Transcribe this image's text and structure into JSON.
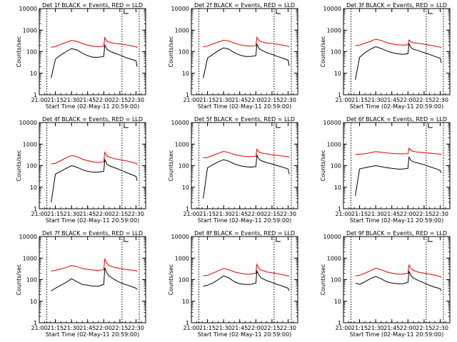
{
  "xtick_labels": [
    "21:00",
    "21:15",
    "21:30",
    "21:45",
    "22:00",
    "22:15",
    "22:30"
  ],
  "ytick_labels": [
    "1",
    "10",
    "100",
    "1000",
    "10000"
  ],
  "ylabel": "Counts/sec",
  "xlabel": "Start Time (02-May-11 20:59:00)",
  "colors": {
    "events": "#000000",
    "lld": "#e00000"
  },
  "chart_data": [
    {
      "type": "line",
      "title": "Det 1f BLACK = Events, RED = LLD",
      "xlabel": "Start Time (02-May-11 20:59:00)",
      "ylabel": "Counts/sec",
      "xlim": [
        "21:00",
        "22:39"
      ],
      "ylim": [
        1,
        10000
      ],
      "yscale": "log",
      "vlines": [
        "21:07",
        "22:17",
        "22:33"
      ],
      "x": [
        "21:11",
        "21:15",
        "21:20",
        "21:25",
        "21:30",
        "21:35",
        "21:40",
        "21:45",
        "21:50",
        "21:55",
        "22:00",
        "22:01",
        "22:03",
        "22:05",
        "22:10",
        "22:15",
        "22:20",
        "22:25",
        "22:30",
        "22:31"
      ],
      "series": [
        {
          "name": "BLACK = Events",
          "values": [
            6,
            45,
            70,
            100,
            140,
            120,
            85,
            65,
            55,
            55,
            60,
            200,
            130,
            110,
            85,
            70,
            55,
            45,
            38,
            20
          ]
        },
        {
          "name": "RED = LLD",
          "values": [
            160,
            170,
            220,
            270,
            330,
            300,
            240,
            200,
            180,
            170,
            180,
            450,
            300,
            280,
            240,
            230,
            210,
            190,
            170,
            150
          ]
        }
      ]
    },
    {
      "type": "line",
      "title": "Det 2f BLACK = Events, RED = LLD",
      "xlabel": "Start Time (02-May-11 20:59:00)",
      "ylabel": "Counts/sec",
      "xlim": [
        "21:00",
        "22:39"
      ],
      "ylim": [
        1,
        10000
      ],
      "yscale": "log",
      "vlines": [
        "21:07",
        "22:17",
        "22:33"
      ],
      "x": [
        "21:11",
        "21:15",
        "21:20",
        "21:25",
        "21:30",
        "21:35",
        "21:40",
        "21:45",
        "21:50",
        "21:55",
        "22:00",
        "22:01",
        "22:03",
        "22:05",
        "22:10",
        "22:15",
        "22:20",
        "22:25",
        "22:30",
        "22:31"
      ],
      "series": [
        {
          "name": "BLACK = Events",
          "values": [
            6,
            50,
            75,
            110,
            150,
            130,
            90,
            70,
            60,
            60,
            65,
            220,
            140,
            120,
            90,
            75,
            60,
            50,
            40,
            22
          ]
        },
        {
          "name": "RED = LLD",
          "values": [
            170,
            180,
            230,
            280,
            340,
            310,
            250,
            210,
            190,
            180,
            190,
            470,
            320,
            290,
            250,
            240,
            220,
            200,
            180,
            160
          ]
        }
      ]
    },
    {
      "type": "line",
      "title": "Det 3f BLACK = Events, RED = LLD",
      "xlabel": "Start Time (02-May-11 20:59:00)",
      "ylabel": "Counts/sec",
      "xlim": [
        "21:00",
        "22:39"
      ],
      "ylim": [
        1,
        10000
      ],
      "yscale": "log",
      "vlines": [
        "21:07",
        "22:17",
        "22:33"
      ],
      "x": [
        "21:11",
        "21:15",
        "21:20",
        "21:25",
        "21:30",
        "21:35",
        "21:40",
        "21:45",
        "21:50",
        "21:55",
        "22:00",
        "22:01",
        "22:03",
        "22:05",
        "22:10",
        "22:15",
        "22:20",
        "22:25",
        "22:30",
        "22:31"
      ],
      "series": [
        {
          "name": "BLACK = Events",
          "values": [
            5,
            55,
            90,
            130,
            170,
            140,
            110,
            90,
            80,
            75,
            80,
            230,
            150,
            130,
            110,
            90,
            75,
            60,
            50,
            30
          ]
        },
        {
          "name": "RED = LLD",
          "values": [
            190,
            200,
            250,
            300,
            380,
            330,
            270,
            230,
            210,
            200,
            210,
            350,
            280,
            260,
            240,
            220,
            200,
            180,
            160,
            150
          ]
        }
      ]
    },
    {
      "type": "line",
      "title": "Det 4f BLACK = Events, RED = LLD",
      "xlabel": "Start Time (02-May-11 20:59:00)",
      "ylabel": "Counts/sec",
      "xlim": [
        "21:00",
        "22:39"
      ],
      "ylim": [
        1,
        10000
      ],
      "yscale": "log",
      "vlines": [
        "21:07",
        "22:17",
        "22:33"
      ],
      "x": [
        "21:11",
        "21:15",
        "21:20",
        "21:25",
        "21:30",
        "21:35",
        "21:40",
        "21:45",
        "21:50",
        "21:55",
        "22:00",
        "22:01",
        "22:03",
        "22:05",
        "22:10",
        "22:15",
        "22:20",
        "22:25",
        "22:30",
        "22:31"
      ],
      "series": [
        {
          "name": "BLACK = Events",
          "values": [
            2,
            40,
            55,
            75,
            100,
            85,
            65,
            55,
            50,
            50,
            55,
            190,
            120,
            100,
            80,
            65,
            50,
            40,
            32,
            20
          ]
        },
        {
          "name": "RED = LLD",
          "values": [
            120,
            130,
            170,
            230,
            300,
            260,
            200,
            170,
            150,
            140,
            150,
            420,
            280,
            250,
            210,
            190,
            170,
            150,
            130,
            110
          ]
        }
      ]
    },
    {
      "type": "line",
      "title": "Det 5f BLACK = Events, RED = LLD",
      "xlabel": "Start Time (02-May-11 20:59:00)",
      "ylabel": "Counts/sec",
      "xlim": [
        "21:00",
        "22:39"
      ],
      "ylim": [
        1,
        10000
      ],
      "yscale": "log",
      "vlines": [
        "21:07",
        "22:17",
        "22:33"
      ],
      "x": [
        "21:11",
        "21:15",
        "21:20",
        "21:25",
        "21:30",
        "21:35",
        "21:40",
        "21:45",
        "21:50",
        "21:55",
        "22:00",
        "22:01",
        "22:03",
        "22:05",
        "22:10",
        "22:15",
        "22:20",
        "22:25",
        "22:30",
        "22:31"
      ],
      "series": [
        {
          "name": "BLACK = Events",
          "values": [
            3,
            80,
            110,
            150,
            190,
            160,
            120,
            100,
            90,
            85,
            90,
            300,
            200,
            170,
            140,
            120,
            100,
            85,
            70,
            40
          ]
        },
        {
          "name": "RED = LLD",
          "values": [
            230,
            240,
            300,
            370,
            460,
            400,
            330,
            290,
            270,
            260,
            270,
            580,
            420,
            390,
            350,
            320,
            300,
            280,
            260,
            240
          ]
        }
      ]
    },
    {
      "type": "line",
      "title": "Det 6f BLACK = Events, RED = LLD",
      "xlabel": "Start Time (02-May-11 20:59:00)",
      "ylabel": "Counts/sec",
      "xlim": [
        "21:00",
        "22:39"
      ],
      "ylim": [
        1,
        10000
      ],
      "yscale": "log",
      "vlines": [
        "21:07",
        "22:17",
        "22:33"
      ],
      "x": [
        "21:11",
        "21:15",
        "21:20",
        "21:25",
        "21:30",
        "21:35",
        "21:40",
        "21:45",
        "21:50",
        "21:55",
        "22:00",
        "22:01",
        "22:03",
        "22:05",
        "22:10",
        "22:15",
        "22:20",
        "22:25",
        "22:30",
        "22:31"
      ],
      "series": [
        {
          "name": "BLACK = Events",
          "values": [
            4,
            70,
            80,
            90,
            100,
            90,
            80,
            75,
            70,
            70,
            75,
            250,
            170,
            150,
            130,
            110,
            90,
            75,
            60,
            45
          ]
        },
        {
          "name": "RED = LLD",
          "values": [
            330,
            340,
            360,
            400,
            450,
            420,
            390,
            370,
            360,
            350,
            360,
            650,
            500,
            460,
            420,
            400,
            380,
            360,
            340,
            320
          ]
        }
      ]
    },
    {
      "type": "line",
      "title": "Det 7f BLACK = Events, RED = LLD",
      "xlabel": "Start Time (02-May-11 20:59:00)",
      "ylabel": "Counts/sec",
      "xlim": [
        "21:00",
        "22:39"
      ],
      "ylim": [
        1,
        10000
      ],
      "yscale": "log",
      "vlines": [
        "21:07",
        "22:17",
        "22:33"
      ],
      "x": [
        "21:11",
        "21:15",
        "21:20",
        "21:25",
        "21:30",
        "21:35",
        "21:40",
        "21:45",
        "21:50",
        "21:55",
        "22:00",
        "22:01",
        "22:03",
        "22:05",
        "22:10",
        "22:15",
        "22:20",
        "22:25",
        "22:30",
        "22:31"
      ],
      "series": [
        {
          "name": "BLACK = Events",
          "values": [
            30,
            40,
            55,
            75,
            110,
            80,
            60,
            55,
            50,
            50,
            60,
            350,
            200,
            150,
            100,
            75,
            60,
            50,
            40,
            35
          ]
        },
        {
          "name": "RED = LLD",
          "values": [
            250,
            270,
            310,
            370,
            450,
            400,
            330,
            300,
            280,
            270,
            290,
            900,
            550,
            450,
            370,
            330,
            300,
            280,
            260,
            240
          ]
        }
      ]
    },
    {
      "type": "line",
      "title": "Det 8f BLACK = Events, RED = LLD",
      "xlabel": "Start Time (02-May-11 20:59:00)",
      "ylabel": "Counts/sec",
      "xlim": [
        "21:00",
        "22:39"
      ],
      "ylim": [
        1,
        10000
      ],
      "yscale": "log",
      "vlines": [
        "21:07",
        "22:17",
        "22:33"
      ],
      "x": [
        "21:11",
        "21:15",
        "21:20",
        "21:25",
        "21:30",
        "21:35",
        "21:40",
        "21:45",
        "21:50",
        "21:55",
        "22:00",
        "22:01",
        "22:03",
        "22:05",
        "22:10",
        "22:15",
        "22:20",
        "22:25",
        "22:30",
        "22:31"
      ],
      "series": [
        {
          "name": "BLACK = Events",
          "values": [
            50,
            55,
            70,
            100,
            150,
            120,
            80,
            65,
            60,
            60,
            70,
            250,
            160,
            120,
            90,
            75,
            60,
            50,
            40,
            30
          ]
        },
        {
          "name": "RED = LLD",
          "values": [
            150,
            160,
            200,
            260,
            330,
            290,
            230,
            200,
            180,
            180,
            200,
            520,
            330,
            280,
            230,
            210,
            190,
            170,
            150,
            140
          ]
        }
      ]
    },
    {
      "type": "line",
      "title": "Det 9f BLACK = Events, RED = LLD",
      "xlabel": "Start Time (02-May-11 20:59:00)",
      "ylabel": "Counts/sec",
      "xlim": [
        "21:00",
        "22:39"
      ],
      "ylim": [
        1,
        10000
      ],
      "yscale": "log",
      "vlines": [
        "21:07",
        "22:17",
        "22:33"
      ],
      "x": [
        "21:11",
        "21:15",
        "21:20",
        "21:25",
        "21:30",
        "21:35",
        "21:40",
        "21:45",
        "21:50",
        "21:55",
        "22:00",
        "22:01",
        "22:03",
        "22:05",
        "22:10",
        "22:15",
        "22:20",
        "22:25",
        "22:30",
        "22:31"
      ],
      "series": [
        {
          "name": "BLACK = Events",
          "values": [
            70,
            60,
            80,
            110,
            140,
            110,
            80,
            70,
            65,
            65,
            75,
            240,
            150,
            120,
            90,
            70,
            55,
            45,
            38,
            30
          ]
        },
        {
          "name": "RED = LLD",
          "values": [
            150,
            160,
            200,
            260,
            340,
            290,
            230,
            200,
            180,
            180,
            200,
            480,
            320,
            270,
            220,
            200,
            180,
            160,
            140,
            130
          ]
        }
      ]
    }
  ]
}
